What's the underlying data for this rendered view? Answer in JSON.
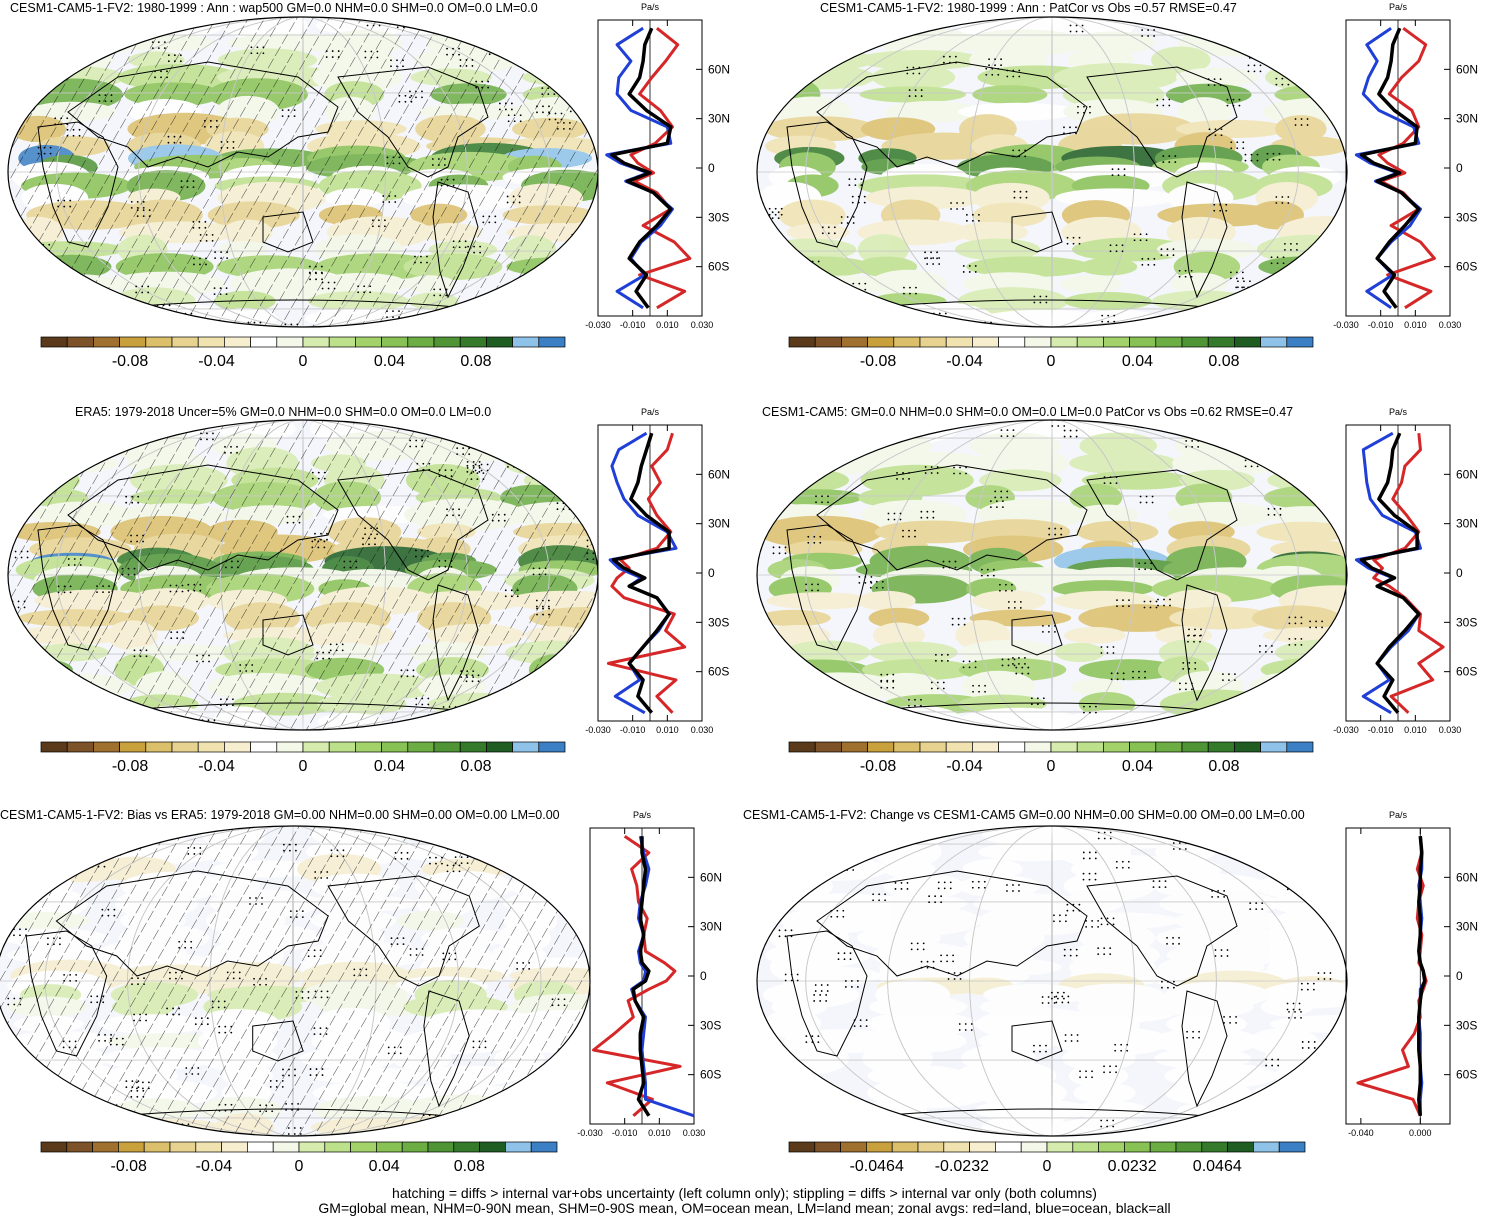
{
  "colors": {
    "scale": [
      "#5a3a1a",
      "#7d5228",
      "#a0702e",
      "#c9a13c",
      "#dcbf6a",
      "#e7d38f",
      "#f0e3b0",
      "#f6eecf",
      "#ffffff",
      "#f3f8e8",
      "#d6ecae",
      "#bde08a",
      "#a3d26b",
      "#88c154",
      "#6cad44",
      "#4f9535",
      "#347a2a",
      "#1f5d22",
      "#8ec2e8",
      "#3b7fc4"
    ],
    "land": "#d62728",
    "ocean": "#1f3fd6",
    "all": "#000000",
    "grid": "#c8c8c8"
  },
  "chart_data": [
    {
      "type": "heatmap",
      "title": "CESM1-CAM5-1-FV2: 1980-1999 : Ann : wap500 GM=0.0 NHM=0.0 SHM=0.0 OM=0.0 LM=0.0",
      "colorbar_ticks": [
        "-0.08",
        "-0.04",
        "0",
        "0.04",
        "0.08"
      ],
      "hatched": true,
      "zonal": {
        "unit": "Pa/s",
        "xticks": [
          "-0.030",
          "-0.010",
          "0.010",
          "0.030"
        ],
        "xlim": [
          -0.03,
          0.03
        ],
        "yticks": [
          "60N",
          "30N",
          "0",
          "30S",
          "60S"
        ],
        "ylim": [
          -90,
          90
        ],
        "lat": [
          85,
          75,
          65,
          55,
          45,
          35,
          25,
          15,
          8,
          3,
          -3,
          -8,
          -15,
          -25,
          -35,
          -45,
          -55,
          -65,
          -75,
          -85
        ],
        "series": [
          {
            "name": "red=land",
            "values": [
              0.004,
              0.016,
              0.009,
              0.001,
              -0.006,
              0.006,
              0.013,
              0.003,
              -0.011,
              -0.007,
              0.002,
              -0.009,
              0.004,
              0.012,
              -0.004,
              0.014,
              0.023,
              -0.006,
              0.02,
              0.004
            ]
          },
          {
            "name": "blue=ocean",
            "values": [
              -0.004,
              -0.019,
              -0.011,
              -0.018,
              -0.019,
              -0.011,
              0.01,
              0.012,
              -0.025,
              -0.017,
              -0.001,
              -0.014,
              0.002,
              0.013,
              0.006,
              -0.005,
              -0.011,
              -0.003,
              -0.019,
              -0.004
            ]
          },
          {
            "name": "black=all",
            "values": [
              0.001,
              -0.003,
              -0.004,
              -0.006,
              -0.012,
              -0.002,
              0.012,
              0.01,
              -0.022,
              -0.015,
              0.0,
              -0.013,
              0.002,
              0.012,
              0.004,
              -0.006,
              -0.012,
              -0.002,
              -0.008,
              -0.001
            ]
          }
        ]
      }
    },
    {
      "type": "heatmap",
      "title": "CESM1-CAM5-1-FV2: 1980-1999 : Ann : PatCor vs Obs =0.57 RMSE=0.47",
      "colorbar_ticks": [
        "-0.08",
        "-0.04",
        "0",
        "0.04",
        "0.08"
      ],
      "hatched": false,
      "zonal": {
        "unit": "Pa/s",
        "xticks": [
          "-0.030",
          "-0.010",
          "0.010",
          "0.030"
        ],
        "xlim": [
          -0.03,
          0.03
        ],
        "yticks": [
          "60N",
          "30N",
          "0",
          "30S",
          "60S"
        ],
        "ylim": [
          -90,
          90
        ],
        "lat": [
          85,
          75,
          65,
          55,
          45,
          35,
          25,
          15,
          8,
          3,
          -3,
          -8,
          -15,
          -25,
          -35,
          -45,
          -55,
          -65,
          -75,
          -85
        ],
        "series": [
          {
            "name": "red=land",
            "values": [
              0.003,
              0.016,
              0.012,
              0.002,
              -0.005,
              0.008,
              0.012,
              0.003,
              -0.011,
              -0.006,
              0.004,
              -0.01,
              0.003,
              0.012,
              -0.004,
              0.013,
              0.021,
              -0.006,
              0.019,
              0.004
            ]
          },
          {
            "name": "blue=ocean",
            "values": [
              -0.004,
              -0.018,
              -0.012,
              -0.017,
              -0.02,
              -0.011,
              0.009,
              0.012,
              -0.024,
              -0.016,
              0.0,
              -0.013,
              0.002,
              0.013,
              0.007,
              -0.004,
              -0.012,
              -0.003,
              -0.018,
              -0.004
            ]
          },
          {
            "name": "black=all",
            "values": [
              0.001,
              -0.003,
              -0.004,
              -0.006,
              -0.011,
              -0.002,
              0.011,
              0.01,
              -0.021,
              -0.014,
              0.001,
              -0.012,
              0.002,
              0.012,
              0.004,
              -0.005,
              -0.012,
              -0.002,
              -0.008,
              -0.001
            ]
          }
        ]
      }
    },
    {
      "type": "heatmap",
      "title": "ERA5: 1979-2018 Uncer=5% GM=0.0 NHM=0.0 SHM=0.0 OM=0.0 LM=0.0",
      "colorbar_ticks": [
        "-0.08",
        "-0.04",
        "0",
        "0.04",
        "0.08"
      ],
      "hatched": true,
      "zonal": {
        "unit": "Pa/s",
        "xticks": [
          "-0.030",
          "-0.010",
          "0.010",
          "0.030"
        ],
        "xlim": [
          -0.03,
          0.03
        ],
        "yticks": [
          "60N",
          "30N",
          "0",
          "30S",
          "60S"
        ],
        "ylim": [
          -90,
          90
        ],
        "lat": [
          85,
          75,
          65,
          55,
          45,
          35,
          25,
          15,
          8,
          3,
          -3,
          -8,
          -15,
          -25,
          -35,
          -45,
          -55,
          -65,
          -75,
          -85
        ],
        "series": [
          {
            "name": "red=land",
            "values": [
              0.013,
              0.01,
              0.001,
              0.006,
              -0.001,
              0.004,
              0.012,
              0.004,
              -0.017,
              -0.012,
              -0.019,
              -0.022,
              -0.015,
              0.014,
              0.009,
              0.02,
              -0.024,
              0.015,
              0.004,
              0.013
            ]
          },
          {
            "name": "blue=ocean",
            "values": [
              -0.002,
              -0.018,
              -0.022,
              -0.019,
              -0.015,
              -0.007,
              0.01,
              0.015,
              -0.023,
              -0.018,
              -0.005,
              -0.012,
              0.004,
              0.011,
              0.005,
              -0.004,
              -0.012,
              -0.006,
              -0.02,
              -0.003
            ]
          },
          {
            "name": "black=all",
            "values": [
              0.001,
              -0.002,
              -0.005,
              -0.007,
              -0.011,
              -0.002,
              0.011,
              0.011,
              -0.021,
              -0.015,
              -0.003,
              -0.012,
              0.004,
              0.011,
              0.004,
              -0.004,
              -0.012,
              -0.004,
              -0.007,
              0.001
            ]
          }
        ]
      }
    },
    {
      "type": "heatmap",
      "title": "CESM1-CAM5: GM=0.0 NHM=0.0 SHM=0.0 OM=0.0 LM=0.0 PatCor vs Obs =0.62 RMSE=0.47",
      "colorbar_ticks": [
        "-0.08",
        "-0.04",
        "0",
        "0.04",
        "0.08"
      ],
      "hatched": false,
      "zonal": {
        "unit": "Pa/s",
        "xticks": [
          "-0.030",
          "-0.010",
          "0.010",
          "0.030"
        ],
        "xlim": [
          -0.03,
          0.03
        ],
        "yticks": [
          "60N",
          "30N",
          "0",
          "30S",
          "60S"
        ],
        "ylim": [
          -90,
          90
        ],
        "lat": [
          85,
          75,
          65,
          55,
          45,
          35,
          25,
          15,
          8,
          3,
          -3,
          -8,
          -15,
          -25,
          -35,
          -45,
          -55,
          -65,
          -75,
          -85
        ],
        "series": [
          {
            "name": "red=land",
            "values": [
              0.012,
              0.013,
              0.004,
              0.002,
              -0.003,
              0.005,
              0.012,
              0.004,
              -0.014,
              -0.009,
              -0.014,
              -0.005,
              0.004,
              0.013,
              0.012,
              0.026,
              0.012,
              0.02,
              -0.004,
              0.006
            ]
          },
          {
            "name": "blue=ocean",
            "values": [
              -0.003,
              -0.02,
              -0.019,
              -0.018,
              -0.016,
              -0.009,
              0.01,
              0.013,
              -0.024,
              -0.017,
              -0.003,
              -0.012,
              0.003,
              0.012,
              0.006,
              -0.004,
              -0.012,
              -0.005,
              -0.02,
              -0.004
            ]
          },
          {
            "name": "black=all",
            "values": [
              0.001,
              -0.003,
              -0.004,
              -0.006,
              -0.011,
              -0.002,
              0.011,
              0.011,
              -0.021,
              -0.015,
              -0.002,
              -0.012,
              0.003,
              0.012,
              0.004,
              -0.005,
              -0.012,
              -0.003,
              -0.008,
              0.0
            ]
          }
        ]
      }
    },
    {
      "type": "heatmap",
      "title": "CESM1-CAM5-1-FV2: Bias vs ERA5: 1979-2018 GM=0.00 NHM=0.00 SHM=0.00 OM=0.00 LM=0.00",
      "colorbar_ticks": [
        "-0.08",
        "-0.04",
        "0",
        "0.04",
        "0.08"
      ],
      "hatched": true,
      "zonal": {
        "unit": "Pa/s",
        "xticks": [
          "-0.030",
          "-0.010",
          "0.010",
          "0.030"
        ],
        "xlim": [
          -0.03,
          0.03
        ],
        "yticks": [
          "60N",
          "30N",
          "0",
          "30S",
          "60S"
        ],
        "ylim": [
          -90,
          90
        ],
        "lat": [
          85,
          75,
          65,
          55,
          45,
          35,
          25,
          15,
          8,
          3,
          -3,
          -8,
          -15,
          -25,
          -35,
          -45,
          -55,
          -65,
          -75,
          -85
        ],
        "series": [
          {
            "name": "red=land",
            "values": [
              -0.01,
              0.004,
              -0.006,
              -0.003,
              -0.002,
              0.003,
              0.001,
              0.002,
              0.013,
              0.019,
              0.014,
              0.004,
              -0.008,
              -0.005,
              -0.016,
              -0.028,
              0.022,
              -0.02,
              0.006,
              -0.005
            ]
          },
          {
            "name": "blue=ocean",
            "values": [
              -0.001,
              0.001,
              0.004,
              0.002,
              -0.001,
              -0.002,
              0.001,
              -0.002,
              -0.001,
              0.002,
              0.001,
              -0.006,
              -0.004,
              0.002,
              0.001,
              0.0,
              0.001,
              0.002,
              0.002,
              0.03
            ]
          },
          {
            "name": "black=all",
            "values": [
              0.0,
              0.0,
              0.002,
              0.001,
              0.0,
              -0.001,
              0.001,
              -0.001,
              0.0,
              0.004,
              0.002,
              -0.005,
              -0.004,
              0.001,
              -0.001,
              -0.001,
              0.0,
              0.001,
              -0.002,
              0.004
            ]
          }
        ]
      }
    },
    {
      "type": "heatmap",
      "title": "CESM1-CAM5-1-FV2: Change vs CESM1-CAM5 GM=0.00 NHM=0.00 SHM=0.00 OM=0.00 LM=0.00",
      "colorbar_ticks": [
        "-0.0464",
        "-0.0232",
        "0",
        "0.0232",
        "0.0464"
      ],
      "hatched": false,
      "zonal": {
        "unit": "Pa/s",
        "xticks": [
          "-0.040",
          "0.000"
        ],
        "xlim": [
          -0.05,
          0.02
        ],
        "yticks": [
          "60N",
          "30N",
          "0",
          "30S",
          "60S"
        ],
        "ylim": [
          -90,
          90
        ],
        "lat": [
          85,
          75,
          65,
          55,
          45,
          35,
          25,
          15,
          8,
          3,
          -3,
          -8,
          -15,
          -25,
          -35,
          -45,
          -55,
          -65,
          -75,
          -85
        ],
        "series": [
          {
            "name": "red=land",
            "values": [
              0.0,
              0.001,
              -0.002,
              0.002,
              -0.001,
              -0.002,
              0.001,
              0.0,
              -0.001,
              0.002,
              0.004,
              0.002,
              -0.001,
              0.0,
              -0.004,
              -0.012,
              -0.008,
              -0.042,
              -0.005,
              0.0
            ]
          },
          {
            "name": "blue=ocean",
            "values": [
              0.0,
              0.001,
              0.001,
              -0.001,
              0.0,
              0.001,
              0.0,
              -0.001,
              0.0,
              0.002,
              0.003,
              0.0,
              0.0,
              -0.001,
              0.0,
              0.0,
              0.0,
              0.001,
              0.0,
              0.0
            ]
          },
          {
            "name": "black=all",
            "values": [
              0.0,
              0.001,
              0.0,
              0.0,
              -0.001,
              0.0,
              0.0,
              -0.001,
              0.0,
              0.002,
              0.003,
              0.001,
              0.0,
              -0.001,
              -0.001,
              -0.001,
              0.0,
              0.0,
              -0.001,
              0.0
            ]
          }
        ]
      }
    }
  ],
  "footer": {
    "line1": "hatching = diffs > internal var+obs uncertainty (left column only); stippling = diffs > internal var only (both columns)",
    "line2": "GM=global mean, NHM=0-90N mean, SHM=0-90S mean, OM=ocean mean, LM=land mean; zonal avgs: red=land, blue=ocean, black=all"
  }
}
